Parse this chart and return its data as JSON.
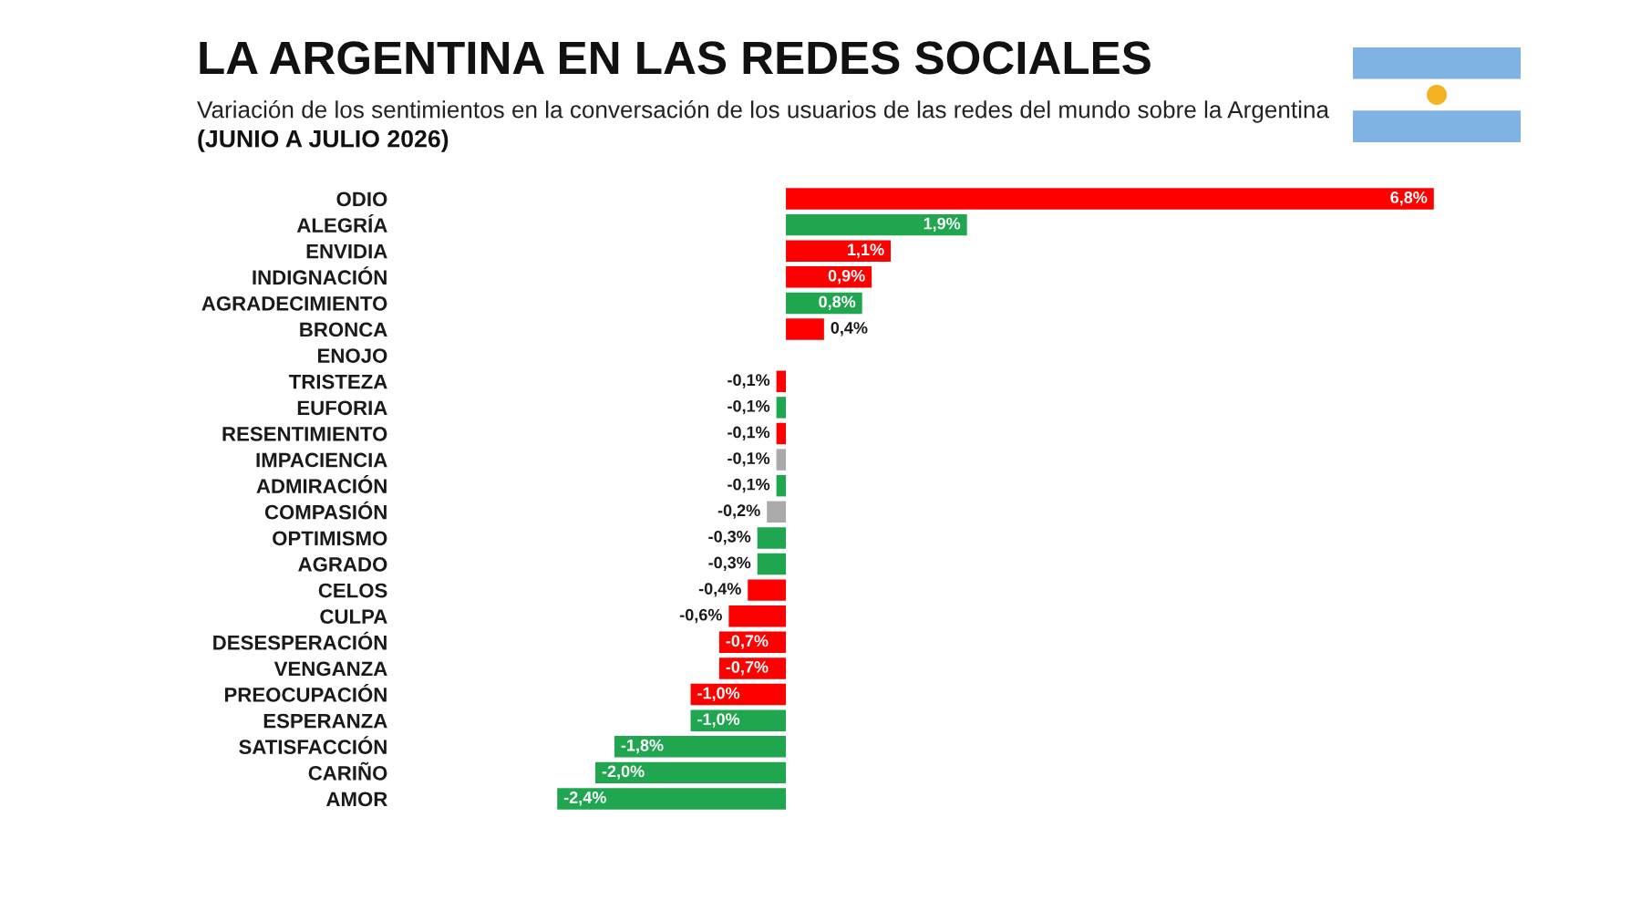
{
  "chart_data": {
    "type": "bar",
    "orientation": "horizontal",
    "title": "LA ARGENTINA EN LAS REDES SOCIALES",
    "subtitle": "Variación de los sentimientos en la conversación de los usuarios de las redes del mundo sobre la Argentina",
    "annotations": [
      "(JUNIO A JULIO 2026)"
    ],
    "categories": [
      "ODIO",
      "ALEGRÍA",
      "ENVIDIA",
      "INDIGNACIÓN",
      "AGRADECIMIENTO",
      "BRONCA",
      "ENOJO",
      "TRISTEZA",
      "EUFORIA",
      "RESENTIMIENTO",
      "IMPACIENCIA",
      "ADMIRACIÓN",
      "COMPASIÓN",
      "OPTIMISMO",
      "AGRADO",
      "CELOS",
      "CULPA",
      "DESESPERACIÓN",
      "VENGANZA",
      "PREOCUPACIÓN",
      "ESPERANZA",
      "SATISFACCIÓN",
      "CARIÑO",
      "AMOR"
    ],
    "values": [
      6.8,
      1.9,
      1.1,
      0.9,
      0.8,
      0.4,
      null,
      -0.1,
      -0.1,
      -0.1,
      -0.1,
      -0.1,
      -0.2,
      -0.3,
      -0.3,
      -0.4,
      -0.6,
      -0.7,
      -0.7,
      -1.0,
      -1.0,
      -1.8,
      -2.0,
      -2.4
    ],
    "colors": [
      "#fe0000",
      "#1fa64f",
      "#fe0000",
      "#fe0000",
      "#1fa64f",
      "#fe0000",
      null,
      "#fe0000",
      "#1fa64f",
      "#fe0000",
      "#aaaaaa",
      "#1fa64f",
      "#aaaaaa",
      "#1fa64f",
      "#1fa64f",
      "#fe0000",
      "#fe0000",
      "#fe0000",
      "#fe0000",
      "#fe0000",
      "#1fa64f",
      "#1fa64f",
      "#1fa64f",
      "#1fa64f"
    ],
    "value_labels": [
      "6,8%",
      "1,9%",
      "1,1%",
      "0,9%",
      "0,8%",
      "0,4%",
      null,
      "-0,1%",
      "-0,1%",
      "-0,1%",
      "-0,1%",
      "-0,1%",
      "-0,2%",
      "-0,3%",
      "-0,3%",
      "-0,4%",
      "-0,6%",
      "-0,7%",
      "-0,7%",
      "-1,0%",
      "-1,0%",
      "-1,8%",
      "-2,0%",
      "-2,4%"
    ],
    "tick_labels": "y"
  }
}
